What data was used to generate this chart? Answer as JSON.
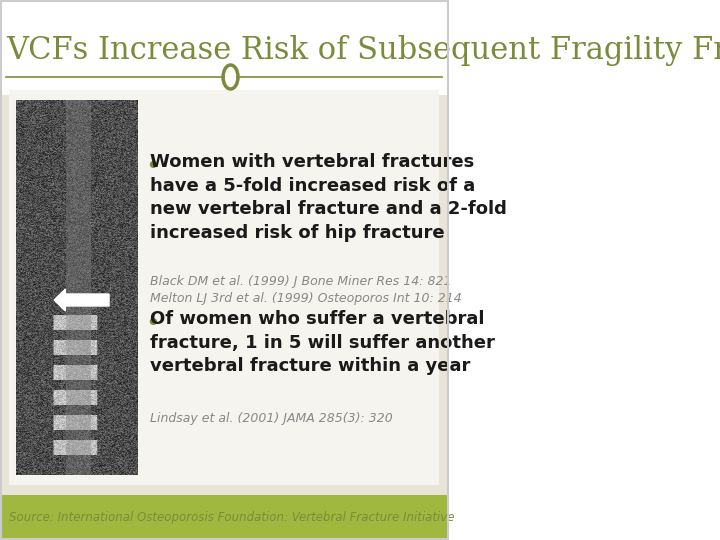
{
  "title": "VCFs Increase Risk of Subsequent Fragility Fracture",
  "title_color": "#7a8c3c",
  "title_fontsize": 22,
  "bg_color": "#ffffff",
  "header_bg": "#ffffff",
  "content_bg": "#e8e4d8",
  "footer_bg": "#a0b840",
  "footer_text": "Source: International Osteoporosis Foundation: Vertebral Fracture Initiative",
  "footer_text_color": "#7a8c3c",
  "separator_color": "#7a8c3c",
  "circle_color": "#7a8c3c",
  "bullet_color": "#7a8c3c",
  "bullet1_main": "Women with vertebral fractures\nhave a 5-fold increased risk of a\nnew vertebral fracture and a 2-fold\nincreased risk of hip fracture",
  "bullet1_ref": "Black DM et al. (1999) J Bone Miner Res 14: 821\nMelton LJ 3rd et al. (1999) Osteoporos Int 10: 214",
  "bullet2_main": "Of women who suffer a vertebral\nfracture, 1 in 5 will suffer another\nvertebral fracture within a year",
  "bullet2_ref": "Lindsay et al. (2001) JAMA 285(3): 320",
  "main_text_color": "#1a1a1a",
  "ref_text_color": "#888888",
  "main_fontsize": 13,
  "ref_fontsize": 9
}
